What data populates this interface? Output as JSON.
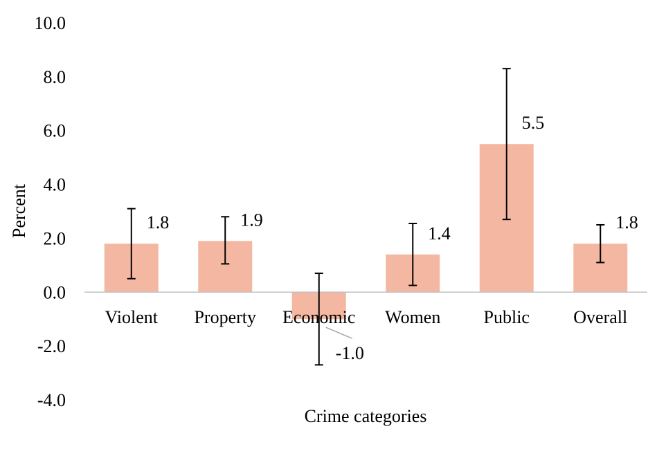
{
  "chart_data": {
    "type": "bar",
    "title": "",
    "xlabel": "Crime categories",
    "ylabel": "Percent",
    "ylim": [
      -4.0,
      10.0
    ],
    "yticks": [
      -4.0,
      -2.0,
      0.0,
      2.0,
      4.0,
      6.0,
      8.0,
      10.0
    ],
    "ytick_labels": [
      "-4.0",
      "-2.0",
      "0.0",
      "2.0",
      "4.0",
      "6.0",
      "8.0",
      "10.0"
    ],
    "categories": [
      "Violent",
      "Property",
      "Economic",
      "Women",
      "Public",
      "Overall"
    ],
    "values": [
      1.8,
      1.9,
      -1.0,
      1.4,
      5.5,
      1.8
    ],
    "data_labels": [
      "1.8",
      "1.9",
      "-1.0",
      "1.4",
      "5.5",
      "1.8"
    ],
    "error_low": [
      0.5,
      1.05,
      -2.7,
      0.25,
      2.7,
      1.1
    ],
    "error_high": [
      3.1,
      2.8,
      0.7,
      2.55,
      8.3,
      2.5
    ],
    "bar_color": "#f4b8a2",
    "grid": false,
    "legend": "none"
  }
}
